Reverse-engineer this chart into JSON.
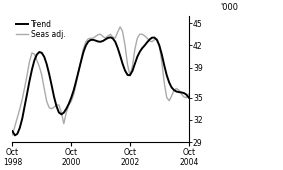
{
  "ylabel_right": "'000",
  "ylim": [
    29,
    46
  ],
  "yticks": [
    29,
    32,
    35,
    39,
    42,
    45
  ],
  "legend_entries": [
    "Trend",
    "Seas adj."
  ],
  "trend_color": "#000000",
  "seas_color": "#aaaaaa",
  "background_color": "#ffffff",
  "trend_linewidth": 1.4,
  "seas_linewidth": 1.0,
  "trend_key_months": [
    0,
    6,
    9,
    14,
    19,
    22,
    25,
    30,
    36,
    42,
    48,
    51,
    54,
    60,
    63,
    66,
    72
  ],
  "trend_key_vals": [
    30.5,
    35.5,
    40.0,
    39.5,
    33.0,
    33.5,
    36.0,
    42.0,
    42.5,
    42.5,
    38.0,
    40.5,
    42.0,
    42.0,
    38.0,
    36.0,
    35.0
  ],
  "seas_key_months": [
    0,
    3,
    6,
    8,
    10,
    12,
    14,
    16,
    18,
    20,
    21,
    22,
    24,
    27,
    30,
    33,
    36,
    38,
    40,
    42,
    44,
    46,
    48,
    50,
    51,
    53,
    55,
    57,
    60,
    63,
    66,
    69,
    72
  ],
  "seas_key_vals": [
    30.0,
    33.5,
    38.0,
    41.0,
    40.0,
    38.0,
    34.5,
    33.5,
    34.0,
    33.0,
    31.5,
    33.0,
    34.5,
    38.5,
    42.5,
    43.0,
    43.5,
    43.0,
    43.5,
    43.0,
    44.5,
    42.0,
    38.0,
    41.5,
    43.0,
    43.5,
    43.0,
    42.5,
    42.0,
    35.0,
    36.0,
    35.5,
    35.5
  ]
}
